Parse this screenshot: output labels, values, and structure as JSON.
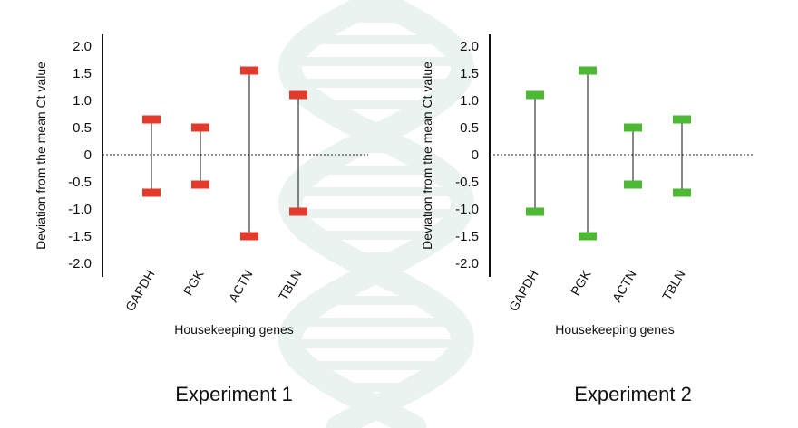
{
  "colors": {
    "series1": "#e43a2b",
    "series2": "#4cb834",
    "axis": "#111111",
    "watermark": "#eaf3ef"
  },
  "watermark": {
    "icon": "dna-helix-icon"
  },
  "chart_data": [
    {
      "type": "range",
      "title": "Experiment 1",
      "xlabel": "Housekeeping genes",
      "ylabel": "Deviation from the mean Ct value",
      "ylim": [
        -2.0,
        2.0
      ],
      "yticks": [
        "2.0",
        "1.5",
        "1.0",
        "0.5",
        "0",
        "-0.5",
        "-1.0",
        "-1.5",
        "-2.0"
      ],
      "reference_line": 0,
      "categories": [
        "GAPDH",
        "PGK",
        "ACTN",
        "TBLN"
      ],
      "high": [
        0.65,
        0.5,
        1.55,
        1.1
      ],
      "low": [
        -0.7,
        -0.55,
        -1.5,
        -1.05
      ],
      "color": "#e43a2b"
    },
    {
      "type": "range",
      "title": "Experiment 2",
      "xlabel": "Housekeeping genes",
      "ylabel": "Deviation from the mean Ct value",
      "ylim": [
        -2.0,
        2.0
      ],
      "yticks": [
        "2.0",
        "1.5",
        "1.0",
        "0.5",
        "0",
        "-0.5",
        "-1.0",
        "-1.5",
        "-2.0"
      ],
      "reference_line": 0,
      "categories": [
        "GAPDH",
        "PGK",
        "ACTN",
        "TBLN"
      ],
      "high": [
        1.1,
        1.55,
        0.5,
        0.65
      ],
      "low": [
        -1.05,
        -1.5,
        -0.55,
        -0.7
      ],
      "color": "#4cb834"
    }
  ]
}
